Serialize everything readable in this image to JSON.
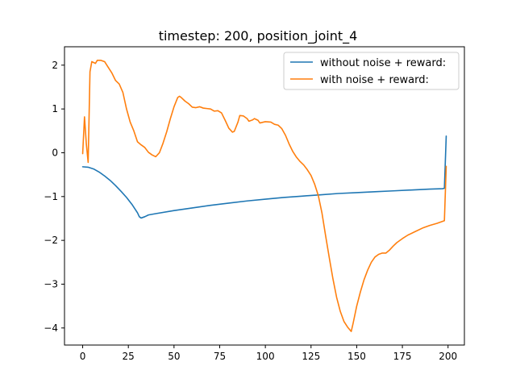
{
  "chart_data": {
    "type": "line",
    "title": "timestep: 200, position_joint_4",
    "xlabel": "",
    "ylabel": "",
    "xlim": [
      -9.95,
      208.95
    ],
    "ylim": [
      -4.39,
      2.42
    ],
    "x_ticks": [
      0,
      25,
      50,
      75,
      100,
      125,
      150,
      175,
      200
    ],
    "y_ticks": [
      -4,
      -3,
      -2,
      -1,
      0,
      1,
      2
    ],
    "grid": false,
    "legend_position": "top-right",
    "series": [
      {
        "name": "without noise + reward:",
        "color": "#1f77b4",
        "points": [
          [
            0,
            -0.32
          ],
          [
            3,
            -0.33
          ],
          [
            6,
            -0.37
          ],
          [
            9,
            -0.44
          ],
          [
            12,
            -0.53
          ],
          [
            15,
            -0.63
          ],
          [
            18,
            -0.75
          ],
          [
            21,
            -0.88
          ],
          [
            24,
            -1.02
          ],
          [
            27,
            -1.18
          ],
          [
            30,
            -1.37
          ],
          [
            31,
            -1.46
          ],
          [
            32,
            -1.49
          ],
          [
            34,
            -1.46
          ],
          [
            36,
            -1.42
          ],
          [
            40,
            -1.39
          ],
          [
            50,
            -1.32
          ],
          [
            60,
            -1.26
          ],
          [
            70,
            -1.2
          ],
          [
            80,
            -1.15
          ],
          [
            90,
            -1.1
          ],
          [
            100,
            -1.06
          ],
          [
            110,
            -1.02
          ],
          [
            120,
            -0.99
          ],
          [
            130,
            -0.96
          ],
          [
            140,
            -0.93
          ],
          [
            150,
            -0.91
          ],
          [
            160,
            -0.89
          ],
          [
            170,
            -0.87
          ],
          [
            180,
            -0.85
          ],
          [
            190,
            -0.83
          ],
          [
            197,
            -0.82
          ],
          [
            198,
            -0.81
          ],
          [
            199,
            0.38
          ]
        ]
      },
      {
        "name": "with noise + reward:",
        "color": "#ff7f0e",
        "points": [
          [
            0,
            -0.02
          ],
          [
            1,
            0.82
          ],
          [
            2,
            0.2
          ],
          [
            3,
            -0.22
          ],
          [
            4,
            1.85
          ],
          [
            5,
            2.08
          ],
          [
            7,
            2.04
          ],
          [
            8,
            2.11
          ],
          [
            10,
            2.11
          ],
          [
            12,
            2.08
          ],
          [
            14,
            1.95
          ],
          [
            16,
            1.82
          ],
          [
            18,
            1.65
          ],
          [
            20,
            1.57
          ],
          [
            22,
            1.38
          ],
          [
            24,
            1.0
          ],
          [
            26,
            0.7
          ],
          [
            28,
            0.5
          ],
          [
            30,
            0.25
          ],
          [
            32,
            0.18
          ],
          [
            34,
            0.12
          ],
          [
            36,
            0.01
          ],
          [
            38,
            -0.05
          ],
          [
            40,
            -0.09
          ],
          [
            42,
            0.0
          ],
          [
            44,
            0.22
          ],
          [
            46,
            0.48
          ],
          [
            48,
            0.78
          ],
          [
            50,
            1.05
          ],
          [
            52,
            1.26
          ],
          [
            53,
            1.29
          ],
          [
            54,
            1.26
          ],
          [
            56,
            1.18
          ],
          [
            58,
            1.12
          ],
          [
            60,
            1.04
          ],
          [
            62,
            1.03
          ],
          [
            64,
            1.05
          ],
          [
            66,
            1.02
          ],
          [
            68,
            1.01
          ],
          [
            70,
            1.0
          ],
          [
            72,
            0.95
          ],
          [
            74,
            0.96
          ],
          [
            76,
            0.91
          ],
          [
            78,
            0.74
          ],
          [
            80,
            0.56
          ],
          [
            82,
            0.47
          ],
          [
            83,
            0.49
          ],
          [
            85,
            0.7
          ],
          [
            86,
            0.85
          ],
          [
            88,
            0.84
          ],
          [
            90,
            0.78
          ],
          [
            91,
            0.72
          ],
          [
            93,
            0.75
          ],
          [
            94,
            0.78
          ],
          [
            96,
            0.74
          ],
          [
            97,
            0.68
          ],
          [
            99,
            0.7
          ],
          [
            100,
            0.71
          ],
          [
            103,
            0.7
          ],
          [
            105,
            0.65
          ],
          [
            107,
            0.63
          ],
          [
            109,
            0.55
          ],
          [
            111,
            0.4
          ],
          [
            113,
            0.2
          ],
          [
            115,
            0.03
          ],
          [
            117,
            -0.1
          ],
          [
            119,
            -0.2
          ],
          [
            121,
            -0.28
          ],
          [
            123,
            -0.39
          ],
          [
            125,
            -0.52
          ],
          [
            127,
            -0.72
          ],
          [
            129,
            -0.98
          ],
          [
            131,
            -1.38
          ],
          [
            133,
            -1.9
          ],
          [
            135,
            -2.4
          ],
          [
            137,
            -2.88
          ],
          [
            139,
            -3.3
          ],
          [
            141,
            -3.62
          ],
          [
            143,
            -3.85
          ],
          [
            145,
            -3.98
          ],
          [
            147,
            -4.08
          ],
          [
            148,
            -3.9
          ],
          [
            150,
            -3.5
          ],
          [
            152,
            -3.18
          ],
          [
            154,
            -2.9
          ],
          [
            156,
            -2.68
          ],
          [
            158,
            -2.5
          ],
          [
            160,
            -2.38
          ],
          [
            162,
            -2.32
          ],
          [
            164,
            -2.29
          ],
          [
            166,
            -2.29
          ],
          [
            168,
            -2.22
          ],
          [
            170,
            -2.13
          ],
          [
            172,
            -2.05
          ],
          [
            175,
            -1.96
          ],
          [
            178,
            -1.88
          ],
          [
            182,
            -1.8
          ],
          [
            186,
            -1.72
          ],
          [
            190,
            -1.66
          ],
          [
            194,
            -1.61
          ],
          [
            198,
            -1.55
          ],
          [
            199,
            -0.31
          ]
        ]
      }
    ]
  }
}
